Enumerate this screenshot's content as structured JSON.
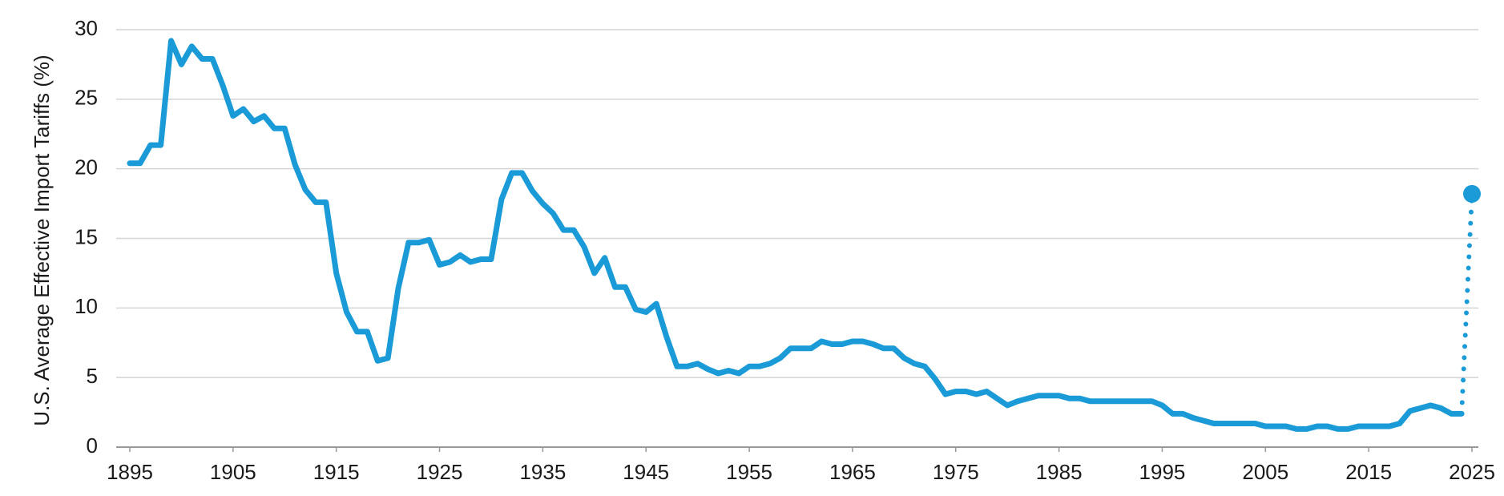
{
  "chart_data": {
    "type": "line",
    "y_label": "U.S. Average Effective Import Tariffs (%)",
    "xlim": [
      1895,
      2025
    ],
    "xticks": [
      1895,
      1905,
      1915,
      1925,
      1935,
      1945,
      1955,
      1965,
      1975,
      1985,
      1995,
      2005,
      2015,
      2025
    ],
    "ylim": [
      0,
      30
    ],
    "yticks": [
      0,
      5,
      10,
      15,
      20,
      25,
      30
    ],
    "grid": true,
    "series": [
      {
        "color": "#1a9ad6",
        "style": "solid",
        "x": [
          1895,
          1896,
          1897,
          1898,
          1899,
          1900,
          1901,
          1902,
          1903,
          1904,
          1905,
          1906,
          1907,
          1908,
          1909,
          1910,
          1911,
          1912,
          1913,
          1914,
          1915,
          1916,
          1917,
          1918,
          1919,
          1920,
          1921,
          1922,
          1923,
          1924,
          1925,
          1926,
          1927,
          1928,
          1929,
          1930,
          1931,
          1932,
          1933,
          1934,
          1935,
          1936,
          1937,
          1938,
          1939,
          1940,
          1941,
          1942,
          1943,
          1944,
          1945,
          1946,
          1947,
          1948,
          1949,
          1950,
          1951,
          1952,
          1953,
          1954,
          1955,
          1956,
          1957,
          1958,
          1959,
          1960,
          1961,
          1962,
          1963,
          1964,
          1965,
          1966,
          1967,
          1968,
          1969,
          1970,
          1971,
          1972,
          1973,
          1974,
          1975,
          1976,
          1977,
          1978,
          1979,
          1980,
          1981,
          1982,
          1983,
          1984,
          1985,
          1986,
          1987,
          1988,
          1989,
          1990,
          1991,
          1992,
          1993,
          1994,
          1995,
          1996,
          1997,
          1998,
          1999,
          2000,
          2001,
          2002,
          2003,
          2004,
          2005,
          2006,
          2007,
          2008,
          2009,
          2010,
          2011,
          2012,
          2013,
          2014,
          2015,
          2016,
          2017,
          2018,
          2019,
          2020,
          2021,
          2022,
          2023,
          2024
        ],
        "values": [
          20.4,
          20.4,
          21.7,
          21.7,
          29.2,
          27.5,
          28.8,
          27.9,
          27.9,
          26.0,
          23.8,
          24.3,
          23.4,
          23.8,
          22.9,
          22.9,
          20.3,
          18.5,
          17.6,
          17.6,
          12.5,
          9.7,
          8.3,
          8.3,
          6.2,
          6.4,
          11.4,
          14.7,
          14.7,
          14.9,
          13.1,
          13.3,
          13.8,
          13.3,
          13.5,
          13.5,
          17.8,
          19.7,
          19.7,
          18.4,
          17.5,
          16.8,
          15.6,
          15.6,
          14.4,
          12.5,
          13.6,
          11.5,
          11.5,
          9.9,
          9.7,
          10.3,
          7.9,
          5.8,
          5.8,
          6.0,
          5.6,
          5.3,
          5.5,
          5.3,
          5.8,
          5.8,
          6.0,
          6.4,
          7.1,
          7.1,
          7.1,
          7.6,
          7.4,
          7.4,
          7.6,
          7.6,
          7.4,
          7.1,
          7.1,
          6.4,
          6.0,
          5.8,
          4.9,
          3.8,
          4.0,
          4.0,
          3.8,
          4.0,
          3.5,
          3.0,
          3.3,
          3.5,
          3.7,
          3.7,
          3.7,
          3.5,
          3.5,
          3.3,
          3.3,
          3.3,
          3.3,
          3.3,
          3.3,
          3.3,
          3.0,
          2.4,
          2.4,
          2.1,
          1.9,
          1.7,
          1.7,
          1.7,
          1.7,
          1.7,
          1.5,
          1.5,
          1.5,
          1.3,
          1.3,
          1.5,
          1.5,
          1.3,
          1.3,
          1.5,
          1.5,
          1.5,
          1.5,
          1.7,
          2.6,
          2.8,
          3.0,
          2.8,
          2.4,
          2.4
        ]
      },
      {
        "color": "#1a9ad6",
        "style": "dotted",
        "marker": "end",
        "x": [
          2024,
          2025
        ],
        "values": [
          2.4,
          18.2
        ]
      }
    ]
  }
}
